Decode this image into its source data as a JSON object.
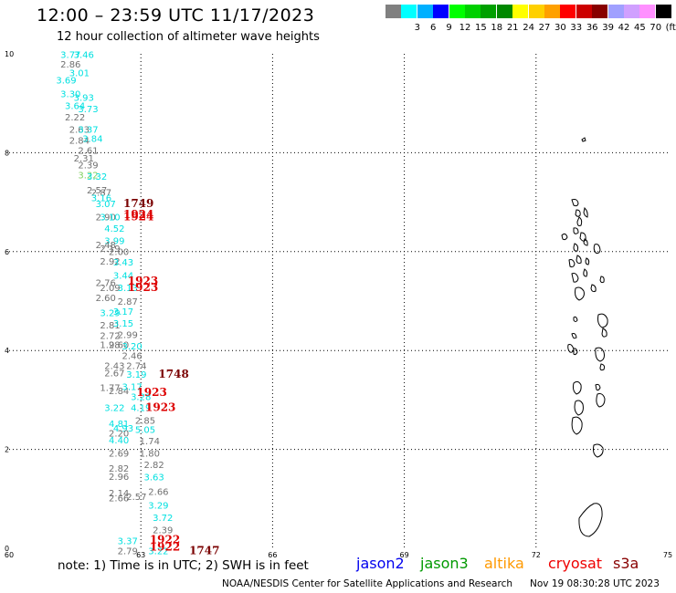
{
  "header": {
    "title": "12:00 – 23:59 UTC 11/17/2023",
    "subtitle": "12 hour collection of altimeter wave heights"
  },
  "legend": {
    "unit": "(ft)",
    "scale": [
      {
        "label": "",
        "color": "#808080"
      },
      {
        "label": "3",
        "color": "#00ffff"
      },
      {
        "label": "6",
        "color": "#00b0ff"
      },
      {
        "label": "9",
        "color": "#0000ff"
      },
      {
        "label": "12",
        "color": "#00ff00"
      },
      {
        "label": "15",
        "color": "#00d000"
      },
      {
        "label": "18",
        "color": "#00a000"
      },
      {
        "label": "21",
        "color": "#008800"
      },
      {
        "label": "24",
        "color": "#ffff00"
      },
      {
        "label": "27",
        "color": "#ffd000"
      },
      {
        "label": "30",
        "color": "#ffa000"
      },
      {
        "label": "33",
        "color": "#ff0000"
      },
      {
        "label": "36",
        "color": "#cc0000"
      },
      {
        "label": "39",
        "color": "#880000"
      },
      {
        "label": "42",
        "color": "#a0a0ff"
      },
      {
        "label": "45",
        "color": "#d0a0ff"
      },
      {
        "label": "70",
        "color": "#ff90ff"
      },
      {
        "label": "",
        "color": "#000000"
      }
    ]
  },
  "map": {
    "lon_range": [
      60,
      75
    ],
    "lat_range": [
      0,
      10
    ],
    "lon_ticks": [
      "60",
      "63",
      "66",
      "69",
      "72",
      "75"
    ],
    "lat_ticks": [
      "0",
      "2",
      "4",
      "6",
      "8",
      "10"
    ],
    "observations": [
      {
        "lon": 61.4,
        "lat": 9.92,
        "text": "3.77",
        "color": "#00e0e0"
      },
      {
        "lon": 61.7,
        "lat": 9.92,
        "text": "3.46",
        "color": "#00e0e0"
      },
      {
        "lon": 61.4,
        "lat": 9.72,
        "text": "2.86",
        "color": "#707070"
      },
      {
        "lon": 61.6,
        "lat": 9.55,
        "text": "3.01",
        "color": "#00e0e0"
      },
      {
        "lon": 61.3,
        "lat": 9.4,
        "text": "3.69",
        "color": "#00e0e0"
      },
      {
        "lon": 61.4,
        "lat": 9.12,
        "text": "3.30",
        "color": "#00e0e0"
      },
      {
        "lon": 61.7,
        "lat": 9.05,
        "text": "3.93",
        "color": "#00e0e0"
      },
      {
        "lon": 61.5,
        "lat": 8.88,
        "text": "3.64",
        "color": "#00e0e0"
      },
      {
        "lon": 61.8,
        "lat": 8.82,
        "text": "3.73",
        "color": "#00e0e0"
      },
      {
        "lon": 61.5,
        "lat": 8.65,
        "text": "2.22",
        "color": "#707070"
      },
      {
        "lon": 61.6,
        "lat": 8.4,
        "text": "2.63",
        "color": "#707070"
      },
      {
        "lon": 61.8,
        "lat": 8.4,
        "text": "3.37",
        "color": "#00e0e0"
      },
      {
        "lon": 61.6,
        "lat": 8.18,
        "text": "2.84",
        "color": "#707070"
      },
      {
        "lon": 61.9,
        "lat": 8.22,
        "text": "3.84",
        "color": "#00e0e0"
      },
      {
        "lon": 61.8,
        "lat": 7.98,
        "text": "2.61",
        "color": "#707070"
      },
      {
        "lon": 61.7,
        "lat": 7.82,
        "text": "2.31",
        "color": "#707070"
      },
      {
        "lon": 61.8,
        "lat": 7.68,
        "text": "2.39",
        "color": "#707070"
      },
      {
        "lon": 61.8,
        "lat": 7.48,
        "text": "3.22",
        "color": "#80d060"
      },
      {
        "lon": 62.0,
        "lat": 7.45,
        "text": "3.32",
        "color": "#00e0e0"
      },
      {
        "lon": 62.0,
        "lat": 7.18,
        "text": "2.57",
        "color": "#707070"
      },
      {
        "lon": 62.1,
        "lat": 7.13,
        "text": "2.87",
        "color": "#707070"
      },
      {
        "lon": 62.1,
        "lat": 7.02,
        "text": "3.16",
        "color": "#00e0e0"
      },
      {
        "lon": 62.2,
        "lat": 6.9,
        "text": "3.07",
        "color": "#00e0e0"
      },
      {
        "lon": 62.2,
        "lat": 6.63,
        "text": "2.90",
        "color": "#707070"
      },
      {
        "lon": 62.3,
        "lat": 6.63,
        "text": "3.10",
        "color": "#00e0e0"
      },
      {
        "lon": 62.4,
        "lat": 6.4,
        "text": "4.52",
        "color": "#00e0e0"
      },
      {
        "lon": 62.4,
        "lat": 6.15,
        "text": "3.99",
        "color": "#00e0e0"
      },
      {
        "lon": 62.2,
        "lat": 6.07,
        "text": "2.48",
        "color": "#707070"
      },
      {
        "lon": 62.3,
        "lat": 6.0,
        "text": "2.19",
        "color": "#707070"
      },
      {
        "lon": 62.5,
        "lat": 5.93,
        "text": "2.00",
        "color": "#707070"
      },
      {
        "lon": 62.3,
        "lat": 5.74,
        "text": "2.92",
        "color": "#707070"
      },
      {
        "lon": 62.6,
        "lat": 5.72,
        "text": "3.43",
        "color": "#00e0e0"
      },
      {
        "lon": 62.6,
        "lat": 5.45,
        "text": "3.44",
        "color": "#00e0e0"
      },
      {
        "lon": 62.2,
        "lat": 5.3,
        "text": "2.76",
        "color": "#707070"
      },
      {
        "lon": 62.3,
        "lat": 5.2,
        "text": "2.09",
        "color": "#707070"
      },
      {
        "lon": 62.7,
        "lat": 5.2,
        "text": "3.13",
        "color": "#00e0e0"
      },
      {
        "lon": 62.2,
        "lat": 5.0,
        "text": "2.60",
        "color": "#707070"
      },
      {
        "lon": 62.7,
        "lat": 4.93,
        "text": "2.87",
        "color": "#707070"
      },
      {
        "lon": 62.3,
        "lat": 4.7,
        "text": "3.29",
        "color": "#00e0e0"
      },
      {
        "lon": 62.6,
        "lat": 4.72,
        "text": "3.17",
        "color": "#00e0e0"
      },
      {
        "lon": 62.3,
        "lat": 4.45,
        "text": "2.81",
        "color": "#707070"
      },
      {
        "lon": 62.6,
        "lat": 4.48,
        "text": "3.15",
        "color": "#00e0e0"
      },
      {
        "lon": 62.3,
        "lat": 4.23,
        "text": "2.72",
        "color": "#707070"
      },
      {
        "lon": 62.7,
        "lat": 4.25,
        "text": "2.99",
        "color": "#707070"
      },
      {
        "lon": 62.3,
        "lat": 4.05,
        "text": "1.98",
        "color": "#707070"
      },
      {
        "lon": 62.5,
        "lat": 4.05,
        "text": "2.60",
        "color": "#707070"
      },
      {
        "lon": 62.8,
        "lat": 4.02,
        "text": "3.20",
        "color": "#00e0e0"
      },
      {
        "lon": 62.8,
        "lat": 3.83,
        "text": "2.46",
        "color": "#707070"
      },
      {
        "lon": 62.4,
        "lat": 3.63,
        "text": "2.43",
        "color": "#707070"
      },
      {
        "lon": 62.9,
        "lat": 3.63,
        "text": "2.74",
        "color": "#707070"
      },
      {
        "lon": 62.4,
        "lat": 3.48,
        "text": "2.67",
        "color": "#707070"
      },
      {
        "lon": 62.9,
        "lat": 3.45,
        "text": "3.19",
        "color": "#00e0e0"
      },
      {
        "lon": 62.3,
        "lat": 3.18,
        "text": "1.77",
        "color": "#707070"
      },
      {
        "lon": 62.5,
        "lat": 3.12,
        "text": "2.84",
        "color": "#707070"
      },
      {
        "lon": 62.8,
        "lat": 3.2,
        "text": "3.17",
        "color": "#00e0e0"
      },
      {
        "lon": 63.0,
        "lat": 3.0,
        "text": "3.28",
        "color": "#00e0e0"
      },
      {
        "lon": 62.4,
        "lat": 2.78,
        "text": "3.22",
        "color": "#00e0e0"
      },
      {
        "lon": 63.0,
        "lat": 2.78,
        "text": "4.19",
        "color": "#00e0e0"
      },
      {
        "lon": 63.1,
        "lat": 2.52,
        "text": "2.85",
        "color": "#707070"
      },
      {
        "lon": 62.5,
        "lat": 2.45,
        "text": "4.81",
        "color": "#00e0e0"
      },
      {
        "lon": 62.6,
        "lat": 2.36,
        "text": "4.93",
        "color": "#00e0e0"
      },
      {
        "lon": 63.1,
        "lat": 2.33,
        "text": "5.05",
        "color": "#00e0e0"
      },
      {
        "lon": 62.5,
        "lat": 2.26,
        "text": "2.20",
        "color": "#707070"
      },
      {
        "lon": 63.2,
        "lat": 2.1,
        "text": "1.74",
        "color": "#707070"
      },
      {
        "lon": 62.5,
        "lat": 2.12,
        "text": "4.40",
        "color": "#00e0e0"
      },
      {
        "lon": 62.5,
        "lat": 1.85,
        "text": "2.69",
        "color": "#707070"
      },
      {
        "lon": 63.2,
        "lat": 1.85,
        "text": "1.80",
        "color": "#707070"
      },
      {
        "lon": 63.3,
        "lat": 1.62,
        "text": "2.82",
        "color": "#707070"
      },
      {
        "lon": 62.5,
        "lat": 1.55,
        "text": "2.82",
        "color": "#707070"
      },
      {
        "lon": 62.5,
        "lat": 1.38,
        "text": "2.96",
        "color": "#707070"
      },
      {
        "lon": 63.3,
        "lat": 1.37,
        "text": "3.63",
        "color": "#00e0e0"
      },
      {
        "lon": 62.5,
        "lat": 1.05,
        "text": "2.14",
        "color": "#707070"
      },
      {
        "lon": 62.5,
        "lat": 0.95,
        "text": "2.66",
        "color": "#707070"
      },
      {
        "lon": 62.9,
        "lat": 0.98,
        "text": "2.57",
        "color": "#707070"
      },
      {
        "lon": 63.4,
        "lat": 1.08,
        "text": "2.66",
        "color": "#707070"
      },
      {
        "lon": 63.4,
        "lat": 0.8,
        "text": "3.29",
        "color": "#00e0e0"
      },
      {
        "lon": 63.5,
        "lat": 0.55,
        "text": "3.72",
        "color": "#00e0e0"
      },
      {
        "lon": 63.5,
        "lat": 0.3,
        "text": "2.39",
        "color": "#707070"
      },
      {
        "lon": 62.7,
        "lat": 0.08,
        "text": "3.37",
        "color": "#00e0e0"
      },
      {
        "lon": 62.7,
        "lat": -0.12,
        "text": "2.79",
        "color": "#707070"
      },
      {
        "lon": 63.4,
        "lat": -0.12,
        "text": "3.22",
        "color": "#00e0e0"
      }
    ],
    "pass_times": [
      {
        "lon": 62.6,
        "lat": 6.9,
        "text": "1749",
        "color": "#7a0000"
      },
      {
        "lon": 62.6,
        "lat": 6.68,
        "text": "1924",
        "color": "#dd0000"
      },
      {
        "lon": 62.6,
        "lat": 6.63,
        "text": "1924",
        "color": "#dd0000"
      },
      {
        "lon": 62.7,
        "lat": 5.33,
        "text": "1923",
        "color": "#dd0000"
      },
      {
        "lon": 62.7,
        "lat": 5.2,
        "text": "1923",
        "color": "#dd0000"
      },
      {
        "lon": 63.4,
        "lat": 3.45,
        "text": "1748",
        "color": "#7a0000"
      },
      {
        "lon": 62.9,
        "lat": 3.08,
        "text": "1923",
        "color": "#dd0000"
      },
      {
        "lon": 63.1,
        "lat": 2.78,
        "text": "1923",
        "color": "#dd0000"
      },
      {
        "lon": 63.2,
        "lat": 0.1,
        "text": "1922",
        "color": "#dd0000"
      },
      {
        "lon": 63.2,
        "lat": -0.05,
        "text": "1922",
        "color": "#dd0000"
      },
      {
        "lon": 64.1,
        "lat": -0.12,
        "text": "1747",
        "color": "#7a0000"
      }
    ]
  },
  "footer": {
    "note": "note:  1) Time is in UTC;  2) SWH is in feet",
    "satellites": [
      {
        "name": "jason2",
        "color": "#0000ee"
      },
      {
        "name": "jason3",
        "color": "#009900"
      },
      {
        "name": "altika",
        "color": "#ff9900"
      },
      {
        "name": "cryosat",
        "color": "#ee0000"
      },
      {
        "name": "s3a",
        "color": "#880000"
      }
    ],
    "credit": "NOAA/NESDIS Center for Satellite Applications and Research",
    "timestamp": "Nov 19 08:30:28 UTC 2023"
  }
}
